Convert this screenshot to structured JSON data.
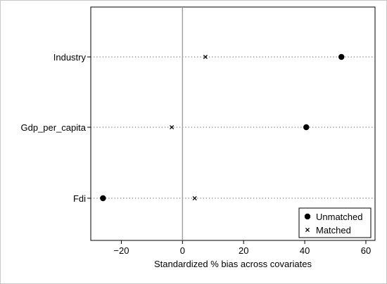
{
  "chart_data": {
    "type": "scatter",
    "title": "",
    "xlabel": "Standardized % bias across covariates",
    "ylabel": "",
    "xlim": [
      -30,
      63
    ],
    "xticks": [
      -20,
      0,
      20,
      40,
      60
    ],
    "xtick_labels": [
      "−20",
      "0",
      "20",
      "40",
      "60"
    ],
    "categories": [
      "Industry",
      "Gdp_per_capita",
      "Fdi"
    ],
    "series": [
      {
        "name": "Unmatched",
        "marker": "filled-circle",
        "values": [
          52.0,
          40.5,
          -26.0
        ]
      },
      {
        "name": "Matched",
        "marker": "x-cross",
        "values": [
          7.5,
          -3.5,
          4.0
        ]
      }
    ],
    "reference_line": 0,
    "grid": "dotted horizontal lines per covariate",
    "legend": {
      "position": "bottom-right",
      "entries": [
        "Unmatched",
        "Matched"
      ]
    }
  }
}
